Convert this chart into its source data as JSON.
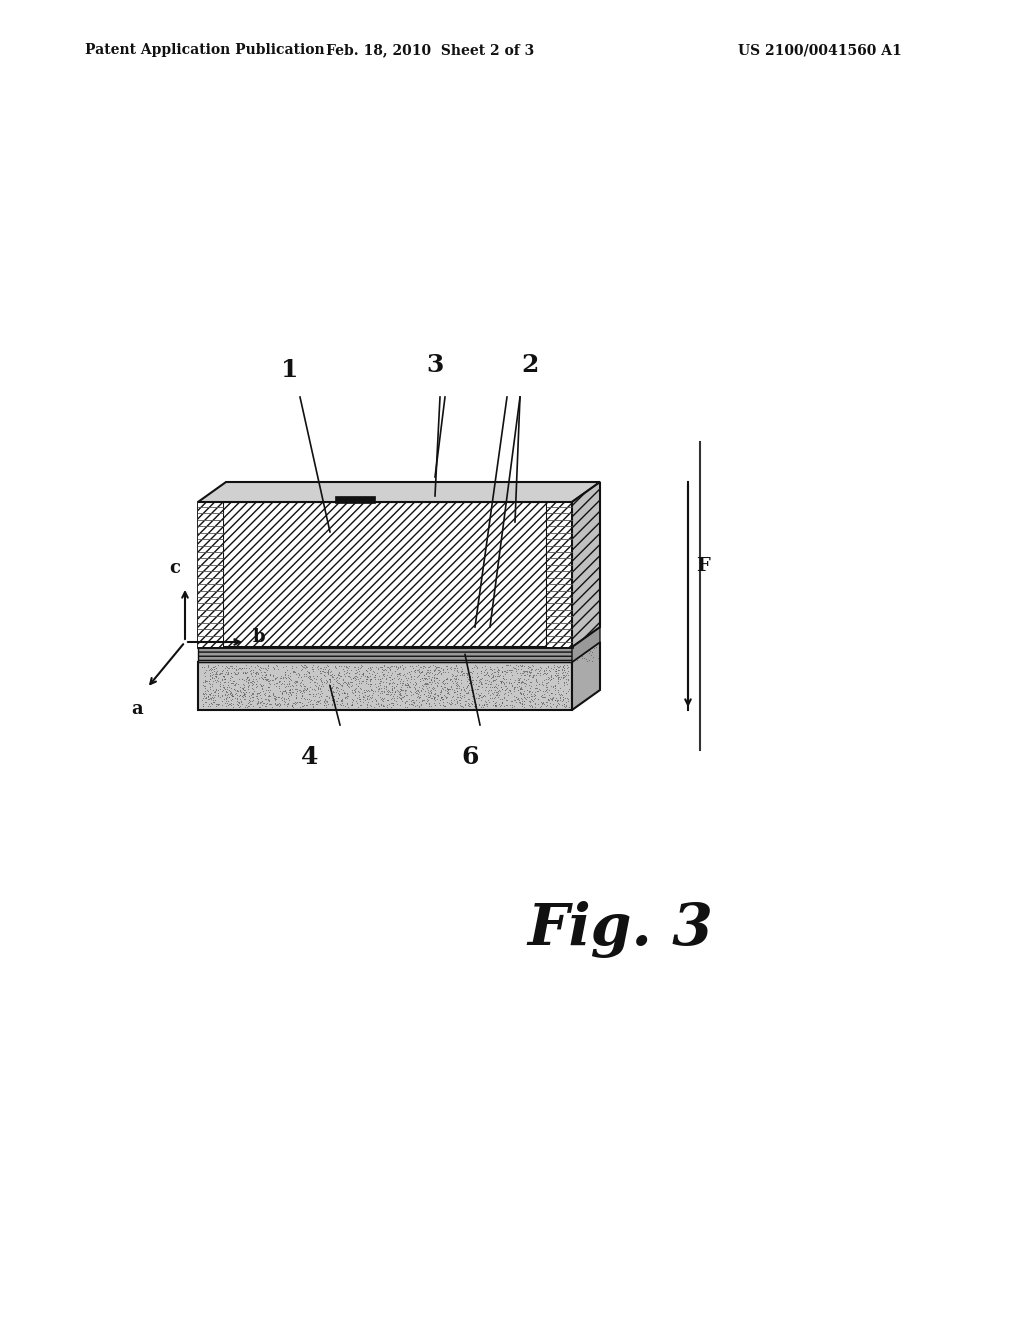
{
  "background_color": "#ffffff",
  "header_left": "Patent Application Publication",
  "header_center": "Feb. 18, 2010  Sheet 2 of 3",
  "header_right": "US 2100/0041560 A1",
  "fig_label": "Fig. 3",
  "border_color": "#111111"
}
